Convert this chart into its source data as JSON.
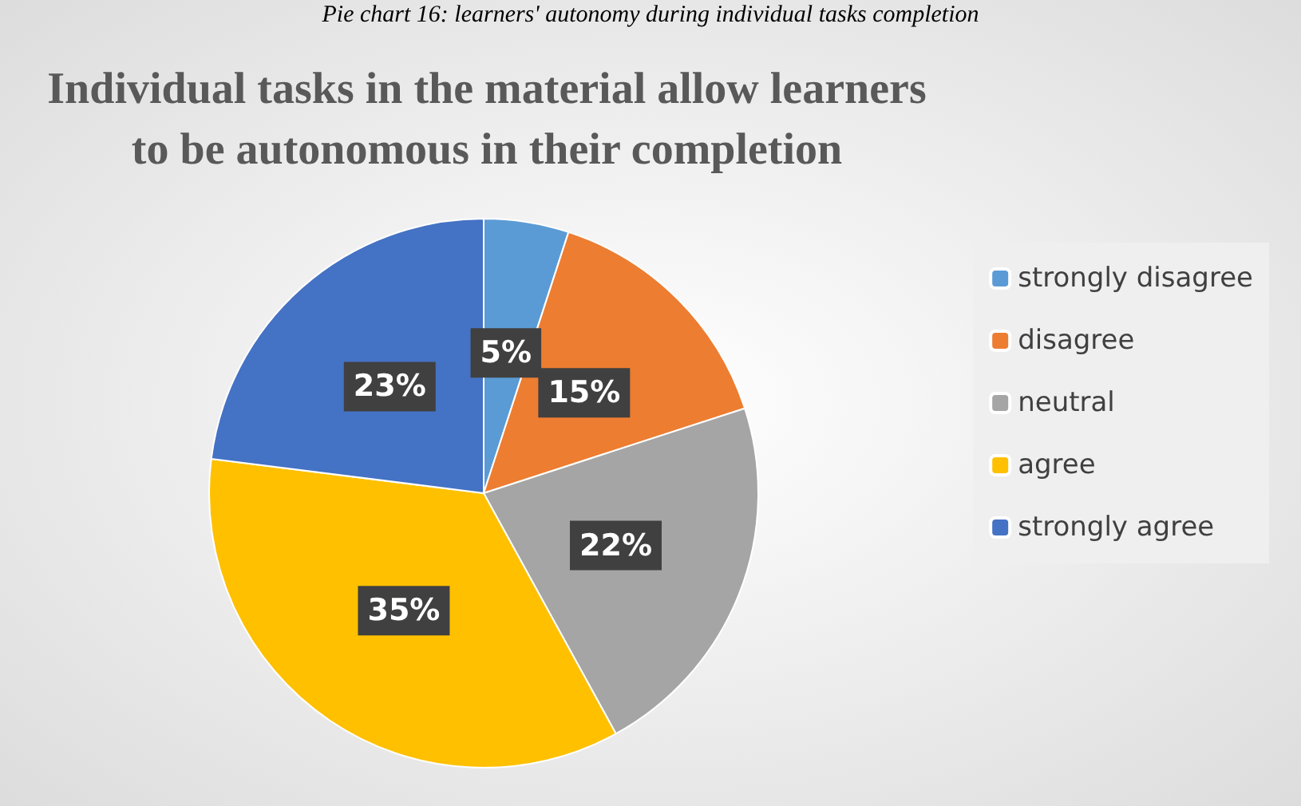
{
  "chart_data": {
    "type": "pie",
    "title": "Individual tasks in the material allow learners\nto be autonomous in their completion",
    "annotations": [
      "Pie chart 16: learners' autonomy during individual tasks completion"
    ],
    "categories": [
      "strongly disagree",
      "disagree",
      "neutral",
      "agree",
      "strongly agree"
    ],
    "values": [
      5,
      15,
      22,
      35,
      23
    ],
    "colors": [
      "#5b9bd5",
      "#ed7d31",
      "#a5a5a5",
      "#ffc000",
      "#4472c4"
    ],
    "value_labels": [
      "5%",
      "15%",
      "22%",
      "35%",
      "23%"
    ],
    "legend": "right"
  }
}
